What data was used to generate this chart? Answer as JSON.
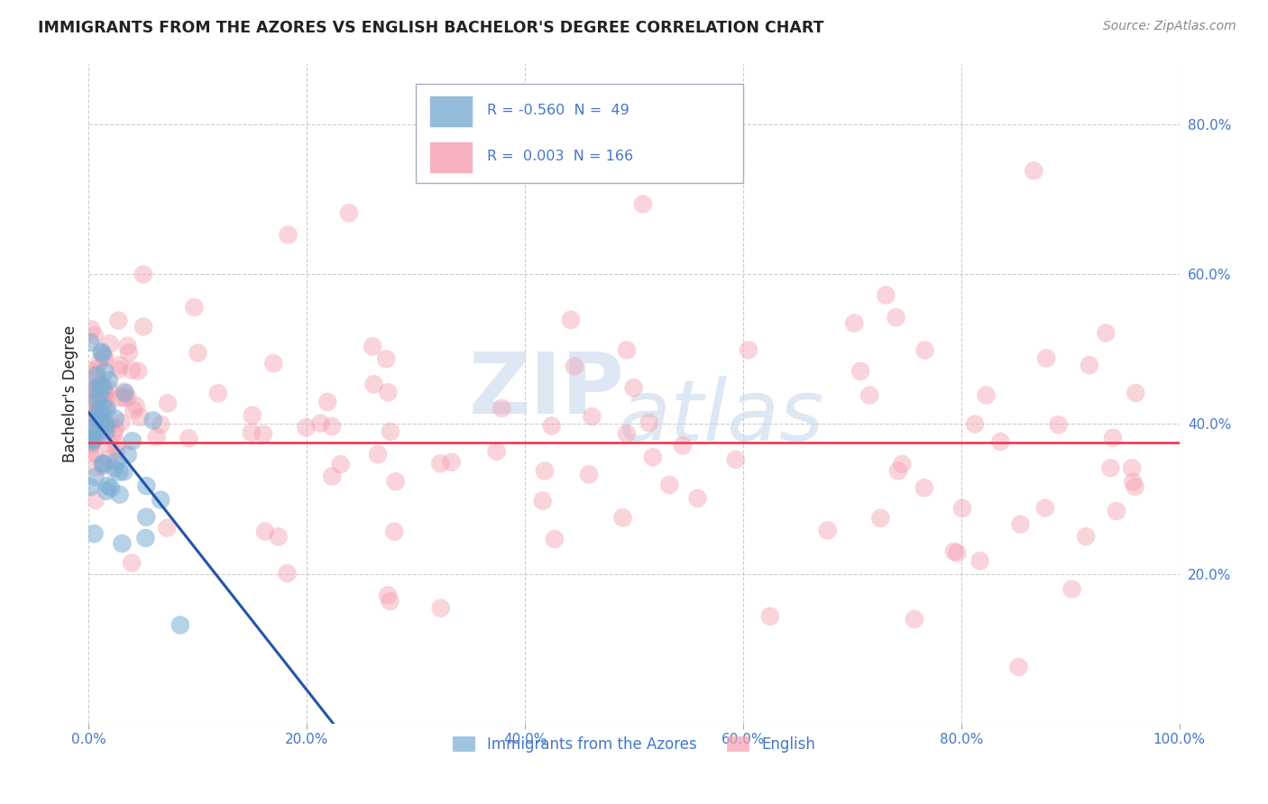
{
  "title": "IMMIGRANTS FROM THE AZORES VS ENGLISH BACHELOR'S DEGREE CORRELATION CHART",
  "source": "Source: ZipAtlas.com",
  "ylabel": "Bachelor's Degree",
  "xlim": [
    0.0,
    1.0
  ],
  "ylim": [
    0.0,
    0.88
  ],
  "x_ticks": [
    0.0,
    0.2,
    0.4,
    0.6,
    0.8,
    1.0
  ],
  "x_tick_labels": [
    "0.0%",
    "20.0%",
    "40.0%",
    "60.0%",
    "80.0%",
    "100.0%"
  ],
  "y_ticks": [
    0.0,
    0.2,
    0.4,
    0.6,
    0.8
  ],
  "y_tick_labels_right": [
    "",
    "20.0%",
    "40.0%",
    "60.0%",
    "80.0%"
  ],
  "legend_blue_label": "Immigrants from the Azores",
  "legend_pink_label": "English",
  "R_blue": "-0.560",
  "N_blue": "49",
  "R_pink": "0.003",
  "N_pink": "166",
  "blue_color": "#7aadd4",
  "pink_color": "#f4a0b0",
  "blue_line_color": "#2255aa",
  "pink_line_color": "#e8405a",
  "trend_pink_y": 0.375,
  "watermark_top": "ZIP",
  "watermark_bot": "atlas",
  "background_color": "#ffffff",
  "grid_color": "#c8c8c8",
  "title_color": "#222222",
  "axis_color": "#4477cc"
}
